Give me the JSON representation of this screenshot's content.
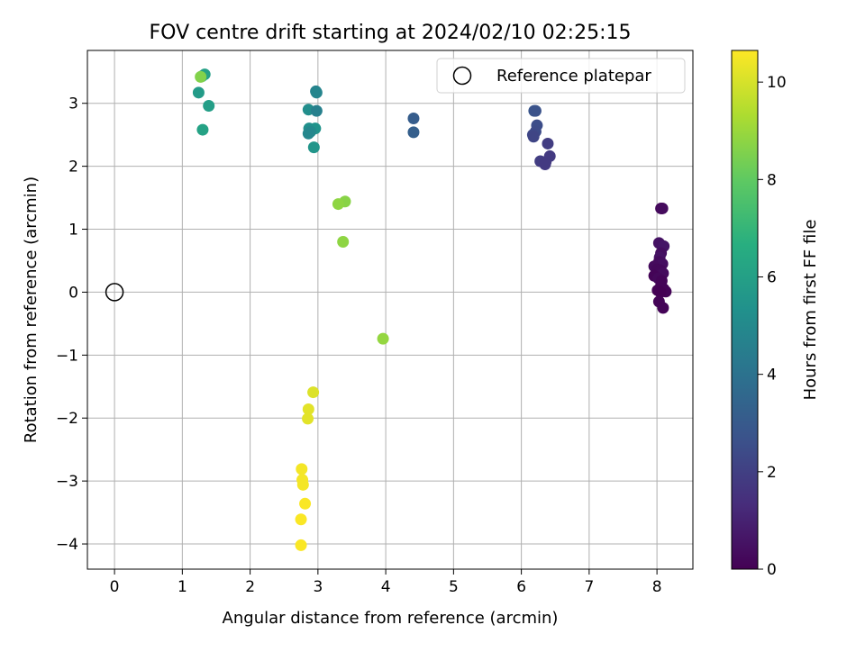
{
  "chart_data": {
    "type": "scatter",
    "title": "FOV centre drift starting at 2024/02/10 02:25:15",
    "xlabel": "Angular distance from reference (arcmin)",
    "ylabel": "Rotation from reference (arcmin)",
    "xlim": [
      -0.4,
      8.53
    ],
    "ylim": [
      -4.4,
      3.84
    ],
    "xticks": [
      0,
      1,
      2,
      3,
      4,
      5,
      6,
      7,
      8
    ],
    "yticks": [
      -4,
      -3,
      -2,
      -1,
      0,
      1,
      2,
      3
    ],
    "xtick_labels": [
      "0",
      "1",
      "2",
      "3",
      "4",
      "5",
      "6",
      "7",
      "8"
    ],
    "ytick_labels": [
      "−4",
      "−3",
      "−2",
      "−1",
      "0",
      "1",
      "2",
      "3"
    ],
    "grid": true,
    "legend": {
      "placement": "top-right",
      "entries": [
        {
          "label": "Reference platepar",
          "marker": "open-circle"
        }
      ]
    },
    "reference_point": {
      "x": 0,
      "y": 0
    },
    "colorbar": {
      "label": "Hours from first FF file",
      "colormap": "viridis",
      "range": [
        0,
        10.65
      ],
      "ticks": [
        0,
        2,
        4,
        6,
        8,
        10
      ],
      "tick_labels": [
        "0",
        "2",
        "4",
        "6",
        "8",
        "10"
      ]
    },
    "points": [
      {
        "x": 8.06,
        "y": 1.33,
        "c": 0.2
      },
      {
        "x": 8.08,
        "y": 1.33,
        "c": 0.3
      },
      {
        "x": 8.03,
        "y": 0.78,
        "c": 0.5
      },
      {
        "x": 8.1,
        "y": 0.73,
        "c": 0.6
      },
      {
        "x": 8.06,
        "y": 0.62,
        "c": 0.4
      },
      {
        "x": 8.04,
        "y": 0.55,
        "c": 0.5
      },
      {
        "x": 8.03,
        "y": 0.48,
        "c": 0.3
      },
      {
        "x": 8.08,
        "y": 0.45,
        "c": 0.4
      },
      {
        "x": 7.96,
        "y": 0.41,
        "c": 0.3
      },
      {
        "x": 8.0,
        "y": 0.36,
        "c": 0.2
      },
      {
        "x": 8.05,
        "y": 0.35,
        "c": 0.2
      },
      {
        "x": 8.09,
        "y": 0.3,
        "c": 0.3
      },
      {
        "x": 7.96,
        "y": 0.26,
        "c": 0.1
      },
      {
        "x": 8.02,
        "y": 0.22,
        "c": 0.2
      },
      {
        "x": 8.07,
        "y": 0.18,
        "c": 0.1
      },
      {
        "x": 8.06,
        "y": 0.1,
        "c": 0.1
      },
      {
        "x": 8.1,
        "y": 0.05,
        "c": 0.1
      },
      {
        "x": 8.01,
        "y": 0.03,
        "c": 0.05
      },
      {
        "x": 8.13,
        "y": 0.01,
        "c": 0.1
      },
      {
        "x": 8.05,
        "y": 0.0,
        "c": 0.0
      },
      {
        "x": 8.03,
        "y": -0.15,
        "c": 0.1
      },
      {
        "x": 8.09,
        "y": -0.25,
        "c": 0.1
      },
      {
        "x": 6.19,
        "y": 2.88,
        "c": 2.8
      },
      {
        "x": 6.21,
        "y": 2.88,
        "c": 2.7
      },
      {
        "x": 6.23,
        "y": 2.65,
        "c": 2.5
      },
      {
        "x": 6.21,
        "y": 2.55,
        "c": 2.4
      },
      {
        "x": 6.17,
        "y": 2.5,
        "c": 2.3
      },
      {
        "x": 6.18,
        "y": 2.47,
        "c": 2.2
      },
      {
        "x": 6.39,
        "y": 2.36,
        "c": 1.9
      },
      {
        "x": 6.42,
        "y": 2.16,
        "c": 1.8
      },
      {
        "x": 6.28,
        "y": 2.08,
        "c": 1.9
      },
      {
        "x": 6.36,
        "y": 2.07,
        "c": 1.8
      },
      {
        "x": 6.35,
        "y": 2.03,
        "c": 1.8
      },
      {
        "x": 4.41,
        "y": 2.76,
        "c": 3.1
      },
      {
        "x": 4.41,
        "y": 2.54,
        "c": 3.2
      },
      {
        "x": 2.97,
        "y": 3.19,
        "c": 4.7
      },
      {
        "x": 2.98,
        "y": 3.17,
        "c": 4.8
      },
      {
        "x": 2.86,
        "y": 2.9,
        "c": 5.2
      },
      {
        "x": 2.98,
        "y": 2.88,
        "c": 4.6
      },
      {
        "x": 2.87,
        "y": 2.6,
        "c": 5.3
      },
      {
        "x": 2.96,
        "y": 2.6,
        "c": 5.4
      },
      {
        "x": 2.89,
        "y": 2.55,
        "c": 5.0
      },
      {
        "x": 2.86,
        "y": 2.52,
        "c": 4.9
      },
      {
        "x": 2.94,
        "y": 2.3,
        "c": 5.5
      },
      {
        "x": 1.33,
        "y": 3.46,
        "c": 6.0
      },
      {
        "x": 1.29,
        "y": 3.43,
        "c": 6.2
      },
      {
        "x": 1.24,
        "y": 3.17,
        "c": 5.8
      },
      {
        "x": 1.39,
        "y": 2.96,
        "c": 5.9
      },
      {
        "x": 1.3,
        "y": 2.58,
        "c": 6.1
      },
      {
        "x": 1.27,
        "y": 3.42,
        "c": 8.6
      },
      {
        "x": 3.4,
        "y": 1.44,
        "c": 8.7
      },
      {
        "x": 3.3,
        "y": 1.4,
        "c": 8.8
      },
      {
        "x": 3.37,
        "y": 0.8,
        "c": 8.8
      },
      {
        "x": 3.96,
        "y": -0.74,
        "c": 8.9
      },
      {
        "x": 2.93,
        "y": -1.59,
        "c": 10.1
      },
      {
        "x": 2.86,
        "y": -1.86,
        "c": 10.2
      },
      {
        "x": 2.85,
        "y": -2.01,
        "c": 10.2
      },
      {
        "x": 2.76,
        "y": -2.81,
        "c": 10.5
      },
      {
        "x": 2.77,
        "y": -2.98,
        "c": 10.5
      },
      {
        "x": 2.78,
        "y": -3.06,
        "c": 10.5
      },
      {
        "x": 2.81,
        "y": -3.36,
        "c": 10.6
      },
      {
        "x": 2.75,
        "y": -3.61,
        "c": 10.6
      },
      {
        "x": 2.75,
        "y": -4.02,
        "c": 10.6
      }
    ]
  }
}
